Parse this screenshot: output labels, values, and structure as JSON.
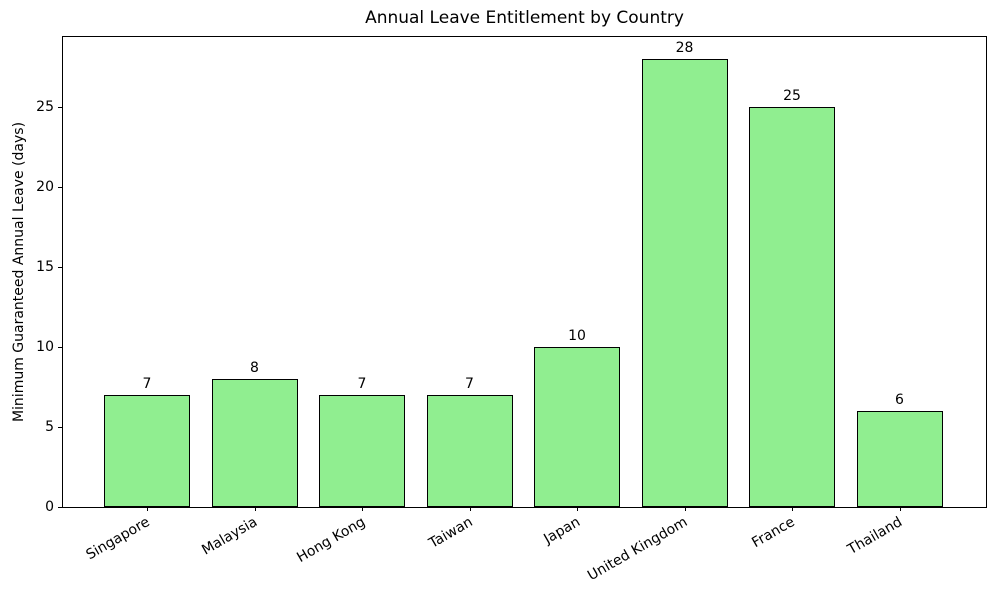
{
  "chart_data": {
    "type": "bar",
    "title": "Annual Leave Entitlement by Country",
    "xlabel": "",
    "ylabel": "Minimum Guaranteed Annual Leave (days)",
    "categories": [
      "Singapore",
      "Malaysia",
      "Hong Kong",
      "Taiwan",
      "Japan",
      "United Kingdom",
      "France",
      "Thailand"
    ],
    "values": [
      7,
      8,
      7,
      7,
      10,
      28,
      25,
      6
    ],
    "value_labels": [
      "7",
      "8",
      "7",
      "7",
      "10",
      "28",
      "25",
      "6"
    ],
    "yticks": [
      0,
      5,
      10,
      15,
      20,
      25
    ],
    "ylim": [
      0,
      29.4
    ],
    "x_tick_rotation_deg": 30,
    "grid": false,
    "legend": false,
    "colors": {
      "bar_fill": "#90EE90",
      "bar_edge": "#000000",
      "spine": "#000000",
      "text": "#000000",
      "background": "#FFFFFF"
    }
  }
}
